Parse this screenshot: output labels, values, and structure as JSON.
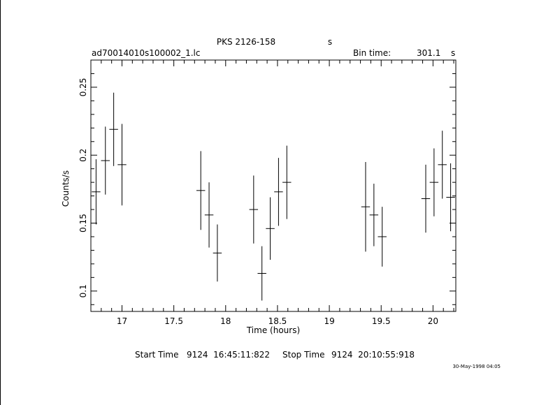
{
  "chart_data": {
    "type": "scatter",
    "title": "PKS 2126-158",
    "title_suffix": "s",
    "subtitle_left": "ad70014010s100002_1.lc",
    "bin_time_label": "Bin time:",
    "bin_time_value": "301.1",
    "bin_time_unit": "s",
    "xlabel": "Time (hours)",
    "ylabel": "Counts/s",
    "xlim": [
      16.7,
      20.22
    ],
    "ylim": [
      0.085,
      0.27
    ],
    "x_ticks": [
      "17",
      "17.5",
      "18",
      "18.5",
      "19",
      "19.5",
      "20"
    ],
    "y_ticks": [
      "0.1",
      "0.15",
      "0.2",
      "0.25"
    ],
    "grid": false,
    "points": [
      {
        "x": 16.75,
        "y": 0.173,
        "xerr": 0.042,
        "yerr": 0.024
      },
      {
        "x": 16.84,
        "y": 0.196,
        "xerr": 0.042,
        "yerr": 0.025
      },
      {
        "x": 16.92,
        "y": 0.219,
        "xerr": 0.042,
        "yerr": 0.027
      },
      {
        "x": 17.0,
        "y": 0.193,
        "xerr": 0.042,
        "yerr": 0.03
      },
      {
        "x": 17.76,
        "y": 0.174,
        "xerr": 0.042,
        "yerr": 0.029
      },
      {
        "x": 17.84,
        "y": 0.156,
        "xerr": 0.042,
        "yerr": 0.024
      },
      {
        "x": 17.92,
        "y": 0.128,
        "xerr": 0.042,
        "yerr": 0.021
      },
      {
        "x": 18.27,
        "y": 0.16,
        "xerr": 0.042,
        "yerr": 0.025
      },
      {
        "x": 18.35,
        "y": 0.113,
        "xerr": 0.042,
        "yerr": 0.02
      },
      {
        "x": 18.43,
        "y": 0.146,
        "xerr": 0.042,
        "yerr": 0.023
      },
      {
        "x": 18.51,
        "y": 0.173,
        "xerr": 0.042,
        "yerr": 0.025
      },
      {
        "x": 18.59,
        "y": 0.18,
        "xerr": 0.042,
        "yerr": 0.027
      },
      {
        "x": 19.35,
        "y": 0.162,
        "xerr": 0.042,
        "yerr": 0.033
      },
      {
        "x": 19.43,
        "y": 0.156,
        "xerr": 0.042,
        "yerr": 0.023
      },
      {
        "x": 19.51,
        "y": 0.14,
        "xerr": 0.042,
        "yerr": 0.022
      },
      {
        "x": 19.93,
        "y": 0.168,
        "xerr": 0.042,
        "yerr": 0.025
      },
      {
        "x": 20.01,
        "y": 0.18,
        "xerr": 0.042,
        "yerr": 0.025
      },
      {
        "x": 20.09,
        "y": 0.193,
        "xerr": 0.042,
        "yerr": 0.025
      },
      {
        "x": 20.17,
        "y": 0.169,
        "xerr": 0.042,
        "yerr": 0.025
      }
    ]
  },
  "footer": {
    "start_label": "Start Time",
    "start_value": "9124  16:45:11:822",
    "stop_label": "Stop Time",
    "stop_value": "9124  20:10:55:918",
    "date_stamp": "30-May-1998 04:05"
  }
}
